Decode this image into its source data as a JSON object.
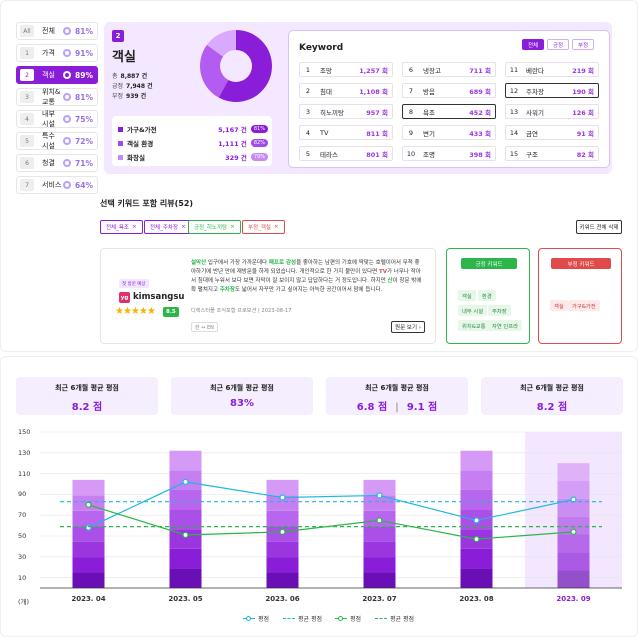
{
  "categories": [
    {
      "num": "All",
      "label": "전체",
      "pct": "81%"
    },
    {
      "num": "1",
      "label": "가격",
      "pct": "91%"
    },
    {
      "num": "2",
      "label": "객실",
      "pct": "89%",
      "selected": true
    },
    {
      "num": "3",
      "label": "위치&교통",
      "pct": "81%"
    },
    {
      "num": "4",
      "label": "내부 시설",
      "pct": "75%"
    },
    {
      "num": "5",
      "label": "특수 시설",
      "pct": "72%"
    },
    {
      "num": "6",
      "label": "청결",
      "pct": "71%"
    },
    {
      "num": "7",
      "label": "서비스",
      "pct": "64%"
    }
  ],
  "detail": {
    "num": "2",
    "title": "객실",
    "stats": [
      {
        "k": "총",
        "v": "8,887 건"
      },
      {
        "k": "긍정",
        "v": "7,948 건"
      },
      {
        "k": "부정",
        "v": "939 건"
      }
    ],
    "subs": [
      {
        "label": "가구&가전",
        "count": "5,167 건",
        "pct": "81%"
      },
      {
        "label": "객실 환경",
        "count": "1,111 건",
        "pct": "82%"
      },
      {
        "label": "화장실",
        "count": "329 건",
        "pct": "79%"
      }
    ],
    "donut": {
      "segments": [
        {
          "value": 58,
          "color": "#8a1ed8"
        },
        {
          "value": 27,
          "color": "#b35cf2"
        },
        {
          "value": 15,
          "color": "#d9a8ff"
        }
      ]
    }
  },
  "keyword": {
    "title": "Keyword",
    "filters": [
      "전체",
      "긍정",
      "부정"
    ],
    "cells": [
      {
        "n": "1",
        "w": "조망",
        "c": "1,257 회"
      },
      {
        "n": "6",
        "w": "냉장고",
        "c": "711 회"
      },
      {
        "n": "11",
        "w": "베란다",
        "c": "219 회"
      },
      {
        "n": "2",
        "w": "침대",
        "c": "1,108 회"
      },
      {
        "n": "7",
        "w": "방음",
        "c": "689 회"
      },
      {
        "n": "12",
        "w": "주차장",
        "c": "190 회",
        "hl": true
      },
      {
        "n": "3",
        "w": "히노끼탕",
        "c": "957 회"
      },
      {
        "n": "8",
        "w": "욕조",
        "c": "452 회",
        "hl": true
      },
      {
        "n": "13",
        "w": "사워기",
        "c": "126 회"
      },
      {
        "n": "4",
        "w": "TV",
        "c": "811 회"
      },
      {
        "n": "9",
        "w": "변기",
        "c": "433 회"
      },
      {
        "n": "14",
        "w": "금연",
        "c": "91 회"
      },
      {
        "n": "5",
        "w": "테라스",
        "c": "801 회"
      },
      {
        "n": "10",
        "w": "조명",
        "c": "398 회"
      },
      {
        "n": "15",
        "w": "구조",
        "c": "82 회"
      }
    ]
  },
  "reviews": {
    "title": "선택 키워드 포함 리뷰(52)",
    "tags": [
      {
        "label": "전체_욕조",
        "color": "#8a1ed8"
      },
      {
        "label": "전체_주차장",
        "color": "#8a1ed8"
      },
      {
        "label": "긍정_히노끼탕",
        "color": "#2bb54b"
      },
      {
        "label": "부정_객실",
        "color": "#e04a4a"
      }
    ],
    "clear_all": "키워드 전체 삭제",
    "review": {
      "badge": "첫 방문 예상",
      "avatar": "yg",
      "user": "kimsangsu",
      "score": "8.5",
      "stars": 4.5,
      "text_parts": [
        {
          "t": "설악산",
          "k": "kw"
        },
        {
          "t": " 입구에서 가장 가까운데다 "
        },
        {
          "t": "패프로 감성",
          "k": "kw"
        },
        {
          "t": "을 좋아하는 남편의 기호에 딱맞는 호텔이어서 무척 좋아하기에 반년 만에 재방문을 하게 되었습니다. 개인적으로 한 가지 불만이 있다면 "
        },
        {
          "t": "TV",
          "k": "kw2"
        },
        {
          "t": "가 너무나 작아서 침대에 누워서 보다 보면 자막이 잘 보이지 않고 답답하다는 거 정도입니다. 하지만 "
        },
        {
          "t": "산",
          "k": "kw"
        },
        {
          "t": "이 창문 밖에 확 펼쳐지고 "
        },
        {
          "t": "주차장",
          "k": "kw"
        },
        {
          "t": "도 넓어서 자꾸만 가고 싶어지는 아늑한 공간이어서 맘에 듭니다."
        }
      ],
      "meta_source": "디렉스터플 조식포함 프로모션",
      "meta_date": "2023-08-17",
      "lang": "한 ↔ EN",
      "more": "원문 보기 ›"
    },
    "positive": {
      "label": "긍정 키워드",
      "chips": [
        "객실",
        "환경",
        "내부 시설",
        "주차장",
        "위치&교통",
        "자연 인프라"
      ]
    },
    "negative": {
      "label": "부정 키워드",
      "chips": [
        "객실",
        "가구&가전"
      ]
    }
  },
  "stat_cards": [
    {
      "title": "최근 6개월 평균 평점",
      "value": "8.2 점"
    },
    {
      "title": "최근 6개월 평균 평점",
      "value": "83%"
    },
    {
      "title": "최근 6개월 평균 평점",
      "value": "6.8 점",
      "value2": "9.1 점"
    },
    {
      "title": "최근 6개월 평균 평점",
      "value": "8.2 점"
    }
  ],
  "chart_data": {
    "type": "bar",
    "categories": [
      "2023. 04",
      "2023. 05",
      "2023. 06",
      "2023. 07",
      "2023. 08",
      "2023. 09"
    ],
    "highlight_index": 5,
    "bar_totals": [
      104,
      132,
      104,
      104,
      132,
      120
    ],
    "yticks": [
      "150",
      "130",
      "110",
      "90",
      "70",
      "50",
      "30",
      "10",
      "(개)"
    ],
    "ylim": [
      0,
      150
    ],
    "series": [
      {
        "name": "평점",
        "type": "line",
        "color": "#1fb6e0",
        "values": [
          58,
          102,
          87,
          89,
          65,
          85
        ]
      },
      {
        "name": "평균 평점",
        "type": "dashed",
        "color": "#1fb6e0",
        "values": [
          83,
          83,
          83,
          83,
          83,
          83
        ]
      },
      {
        "name": "평점",
        "type": "line",
        "color": "#2bb54b",
        "values": [
          80,
          51,
          54,
          65,
          47,
          54
        ]
      },
      {
        "name": "평균 평점",
        "type": "dashed",
        "color": "#2bb54b",
        "values": [
          59,
          59,
          59,
          59,
          59,
          59
        ]
      }
    ],
    "legend": [
      "평점",
      "평균 평점",
      "평점",
      "평균 평점"
    ]
  }
}
